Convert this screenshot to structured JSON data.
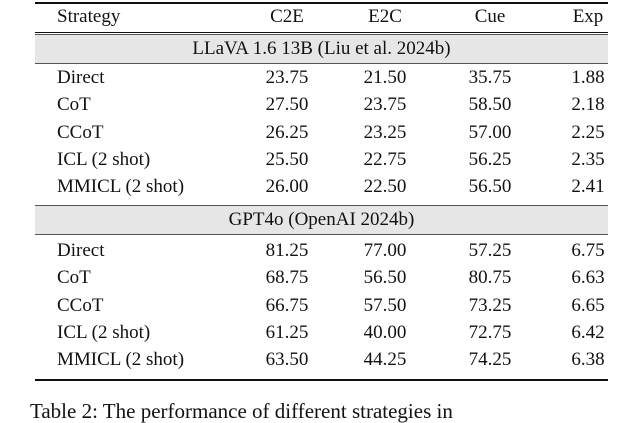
{
  "table": {
    "header": [
      "Strategy",
      "C2E",
      "E2C",
      "Cue",
      "Exp"
    ],
    "sections": [
      {
        "title": "LLaVA 1.6 13B (Liu et al. 2024b)",
        "rows": [
          [
            "Direct",
            "23.75",
            "21.50",
            "35.75",
            "1.88"
          ],
          [
            "CoT",
            "27.50",
            "23.75",
            "58.50",
            "2.18"
          ],
          [
            "CCoT",
            "26.25",
            "23.25",
            "57.00",
            "2.25"
          ],
          [
            "ICL (2 shot)",
            "25.50",
            "22.75",
            "56.25",
            "2.35"
          ],
          [
            "MMICL (2 shot)",
            "26.00",
            "22.50",
            "56.50",
            "2.41"
          ]
        ]
      },
      {
        "title": "GPT4o (OpenAI 2024b)",
        "rows": [
          [
            "Direct",
            "81.25",
            "77.00",
            "57.25",
            "6.75"
          ],
          [
            "CoT",
            "68.75",
            "56.50",
            "80.75",
            "6.63"
          ],
          [
            "CCoT",
            "66.75",
            "57.50",
            "73.25",
            "6.65"
          ],
          [
            "ICL (2 shot)",
            "61.25",
            "40.00",
            "72.75",
            "6.42"
          ],
          [
            "MMICL (2 shot)",
            "63.50",
            "44.25",
            "74.25",
            "6.38"
          ]
        ]
      }
    ]
  },
  "caption": "Table 2: The performance of different strategies in"
}
